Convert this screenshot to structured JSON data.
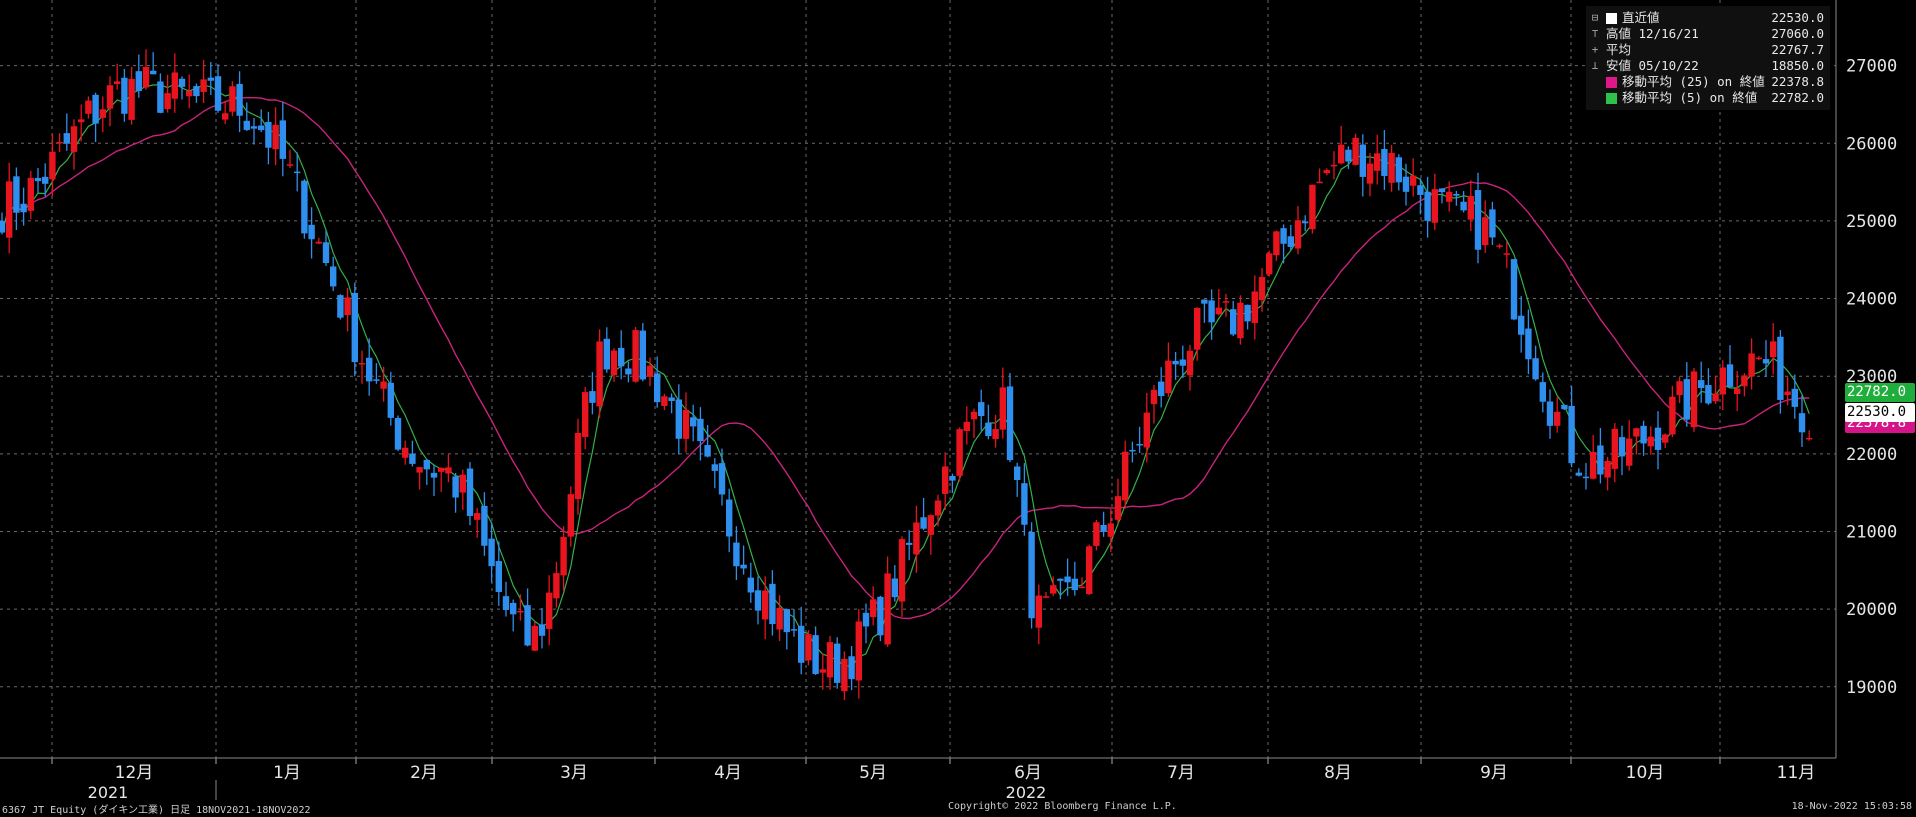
{
  "chart_data": {
    "type": "candlestick",
    "y_ticks": [
      19000,
      20000,
      21000,
      22000,
      23000,
      24000,
      25000,
      26000,
      27000
    ],
    "ylim": [
      18200,
      27600
    ],
    "x_month_labels": [
      "12月",
      "1月",
      "2月",
      "3月",
      "4月",
      "5月",
      "6月",
      "7月",
      "8月",
      "9月",
      "10月",
      "11月"
    ],
    "x_year_labels": [
      "2021",
      "2022"
    ],
    "grid": true,
    "legend_position": "top-right",
    "key_points": [
      {
        "label": "start",
        "value": 25200
      },
      {
        "label": "dec_high",
        "value": 26700
      },
      {
        "label": "jan_high",
        "value": 26500
      },
      {
        "label": "feb_low",
        "value": 21800
      },
      {
        "label": "mar_low",
        "value": 19600
      },
      {
        "label": "mar_high",
        "value": 23400
      },
      {
        "label": "may_low",
        "value": 19300
      },
      {
        "label": "jun_high",
        "value": 22600
      },
      {
        "label": "jun_low",
        "value": 19900
      },
      {
        "label": "jul_high",
        "value": 23600
      },
      {
        "label": "aug_high",
        "value": 25900
      },
      {
        "label": "sep_high",
        "value": 25000
      },
      {
        "label": "oct_low",
        "value": 21900
      },
      {
        "label": "nov_high",
        "value": 23200
      },
      {
        "label": "last",
        "value": 22530
      }
    ],
    "colors": {
      "up": "#e8141e",
      "down": "#2e8fee",
      "ma25": "#c8237c",
      "ma5": "#34b04a",
      "grid": "#6a6a6a"
    }
  },
  "legend": [
    {
      "symbol": "⊟",
      "swatch": "#ffffff",
      "label": "直近値",
      "value": "22530.0"
    },
    {
      "symbol": "⊤",
      "swatch": "",
      "label": "高値 12/16/21",
      "value": "27060.0"
    },
    {
      "symbol": "+",
      "swatch": "",
      "label": "平均",
      "value": "22767.7"
    },
    {
      "symbol": "⊥",
      "swatch": "",
      "label": "安値 05/10/22",
      "value": "18850.0"
    },
    {
      "symbol": "",
      "swatch": "#e0168c",
      "label": "移動平均 (25) on 終値",
      "value": "22378.8"
    },
    {
      "symbol": "",
      "swatch": "#2ec24a",
      "label": "移動平均 (5) on 終値",
      "value": "22782.0"
    }
  ],
  "tags": {
    "ma5": {
      "text": "22782.0",
      "color": "#1fae3c"
    },
    "last": {
      "text": "22530.0",
      "color": "#ffffff"
    },
    "ma25": {
      "text": "22378.8",
      "color": "#d6148a"
    }
  },
  "footer": {
    "left": "6367 JT Equity (ダイキン工業)  日足 18NOV2021-18NOV2022",
    "center": "Copyright© 2022 Bloomberg Finance L.P.",
    "right": "18-Nov-2022 15:03:58"
  }
}
